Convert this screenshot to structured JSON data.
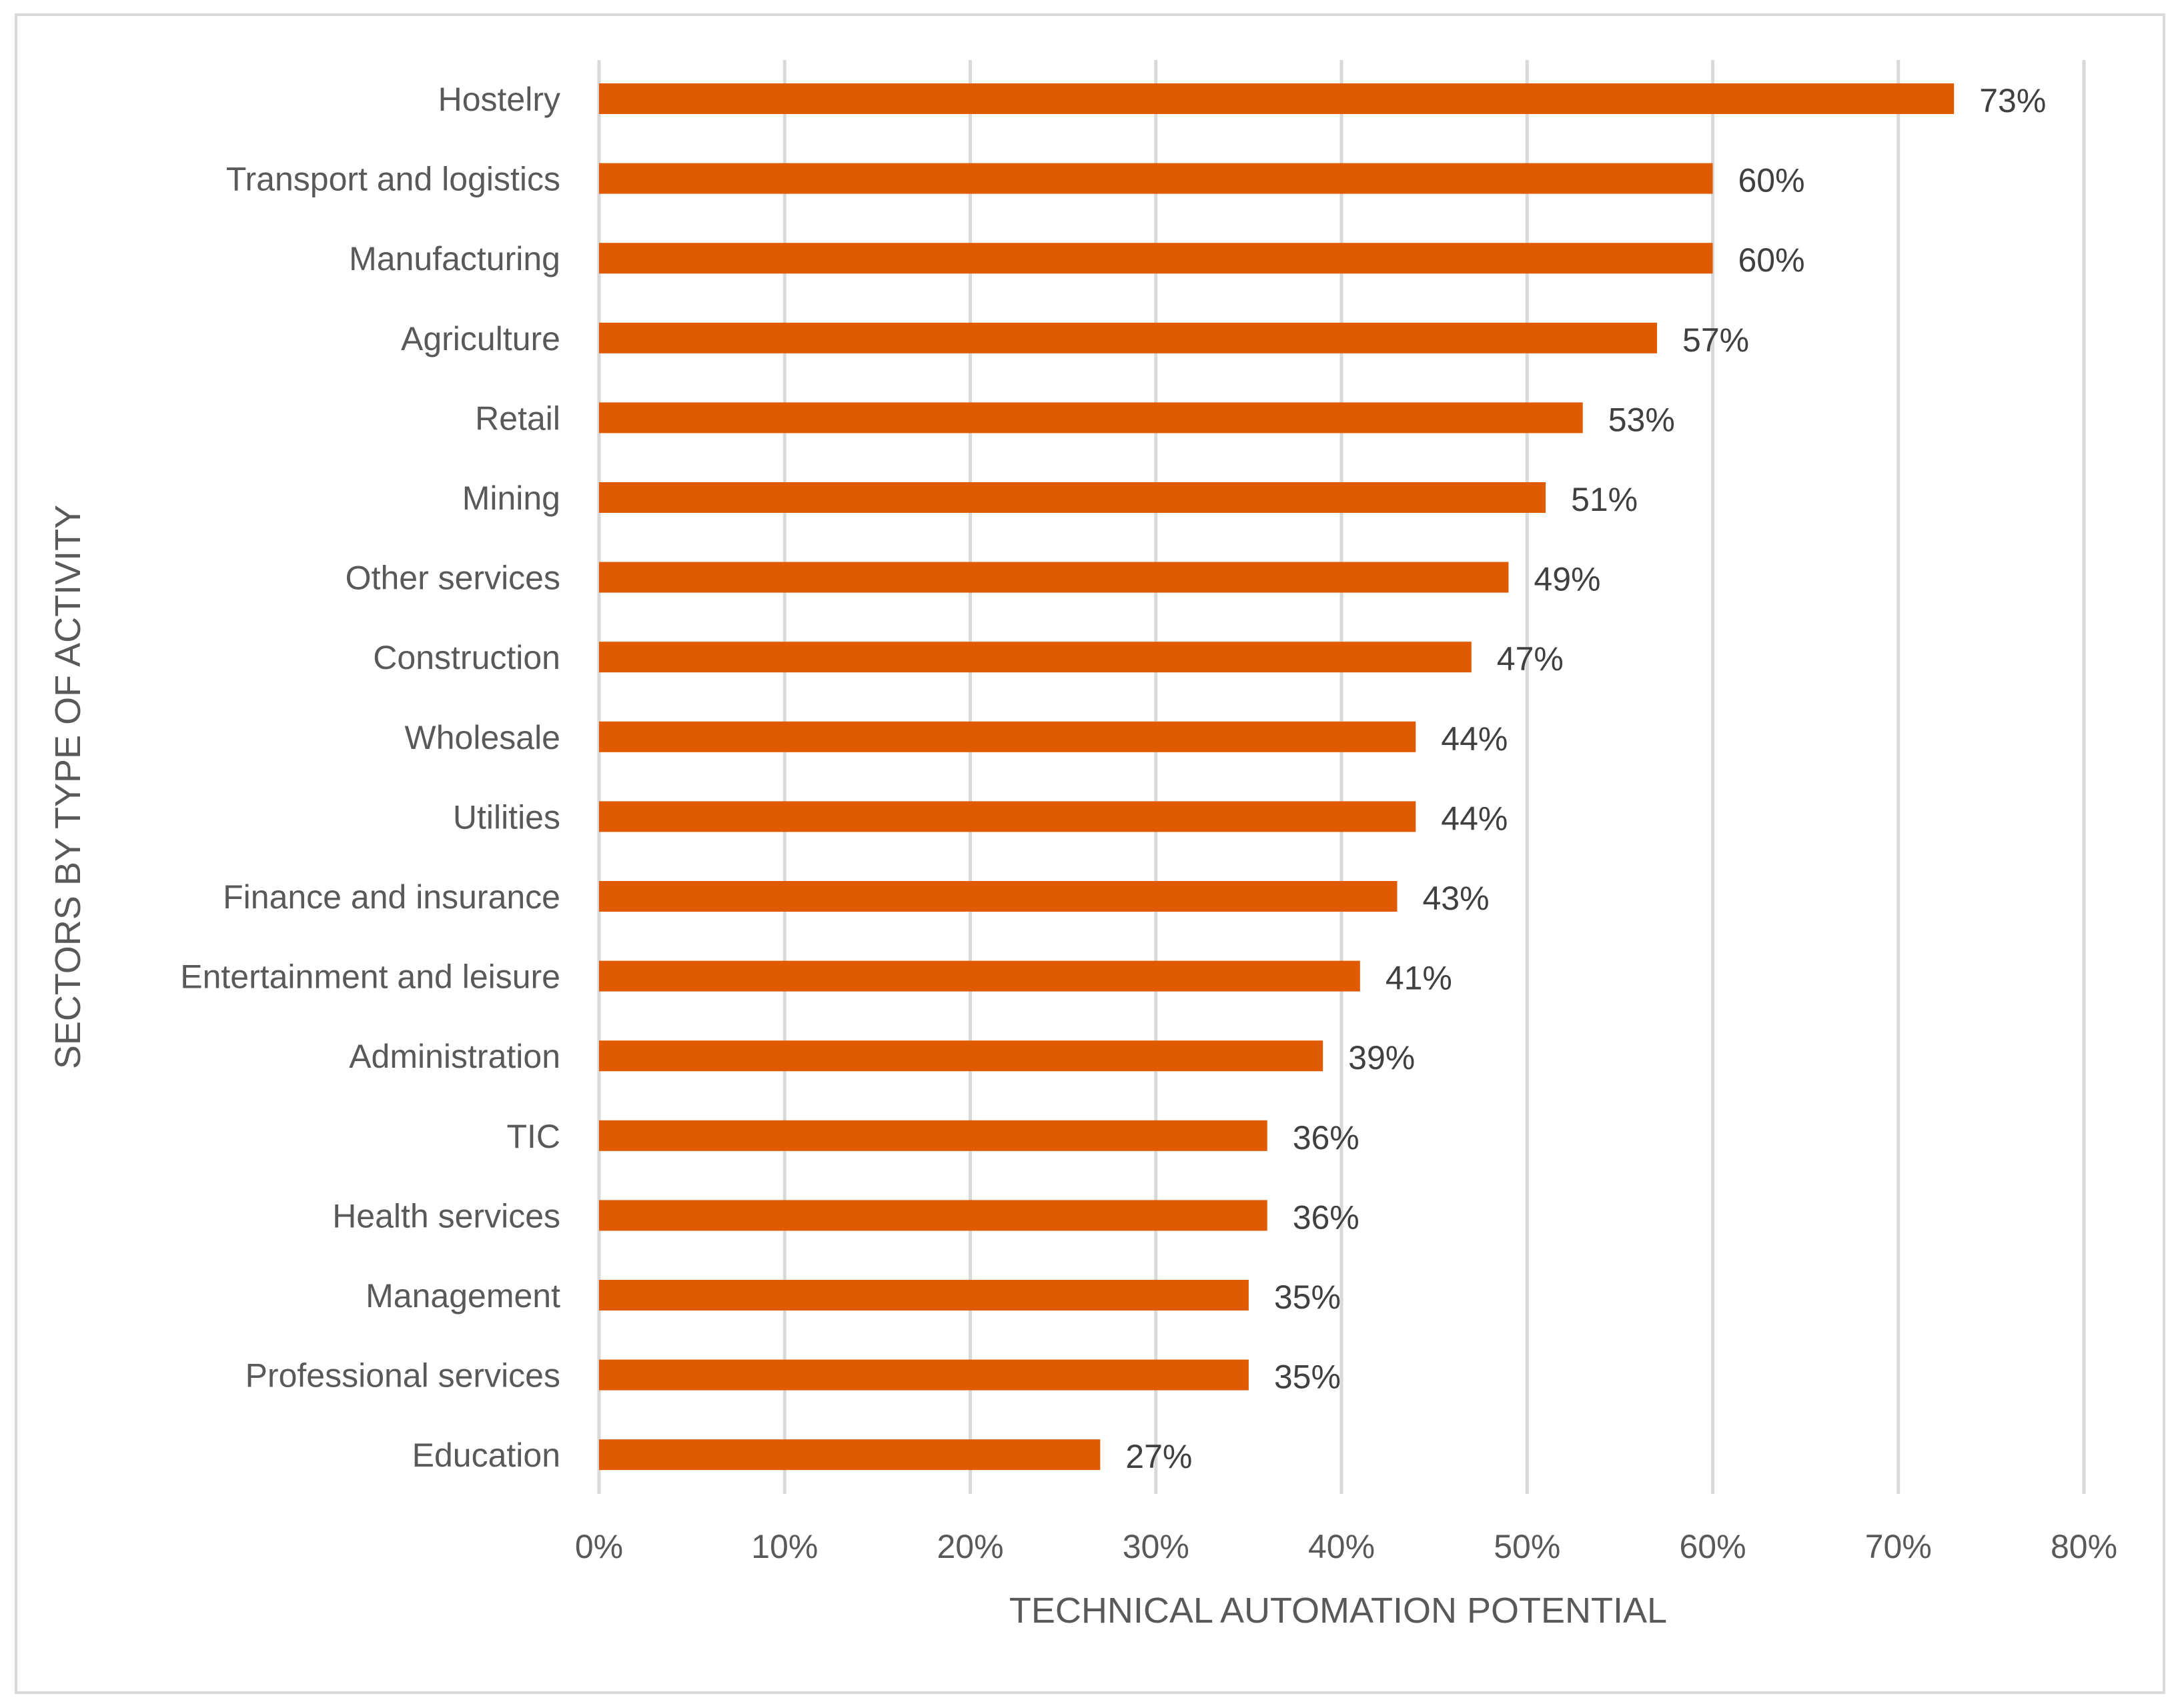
{
  "chart_data": {
    "type": "bar",
    "orientation": "horizontal",
    "categories": [
      "Hostelry",
      "Transport and logistics",
      "Manufacturing",
      "Agriculture",
      "Retail",
      "Mining",
      "Other services",
      "Construction",
      "Wholesale",
      "Utilities",
      "Finance and insurance",
      "Entertainment and leisure",
      "Administration",
      "TIC",
      "Health services",
      "Management",
      "Professional services",
      "Education"
    ],
    "values": [
      73,
      60,
      60,
      57,
      53,
      51,
      49,
      47,
      44,
      44,
      43,
      41,
      39,
      36,
      36,
      35,
      35,
      27
    ],
    "data_labels": [
      "73%",
      "60%",
      "60%",
      "57%",
      "53%",
      "51%",
      "49%",
      "47%",
      "44%",
      "44%",
      "43%",
      "41%",
      "39%",
      "36%",
      "36%",
      "35%",
      "35%",
      "27%"
    ],
    "x_ticks": [
      "0%",
      "10%",
      "20%",
      "30%",
      "40%",
      "50%",
      "60%",
      "70%",
      "80%"
    ],
    "xlim": [
      0,
      80
    ],
    "xlabel": "TECHNICAL AUTOMATION POTENTIAL",
    "ylabel": "SECTORS BY TYPE OF ACTIVITY",
    "grid": "vertical",
    "legend": "none",
    "bar_color": "#e05a00"
  }
}
